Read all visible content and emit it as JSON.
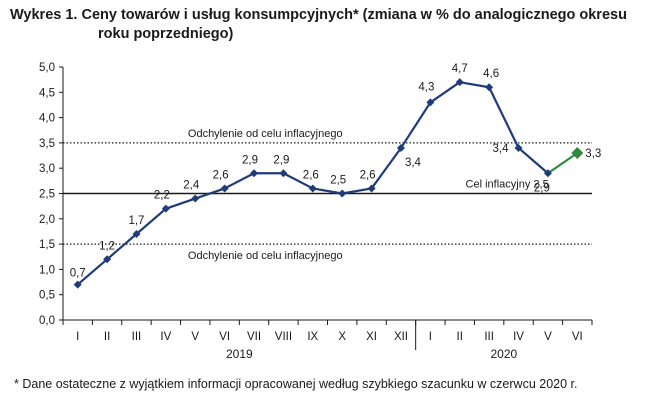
{
  "title_line1": "Wykres 1. Ceny towarów i usług konsumpcyjnych* (zmiana w % do analogicznego okresu",
  "title_line2": "roku poprzedniego)",
  "footnote": "* Dane ostateczne z wyjątkiem informacji opracowanej według szybkiego szacunku w czerwcu 2020 r.",
  "colors": {
    "line": "#1f3b7a",
    "highlight": "#2e8b3e",
    "text": "#1a1a1a"
  },
  "chart_data": {
    "type": "line",
    "categories": [
      "I",
      "II",
      "III",
      "IV",
      "V",
      "VI",
      "VII",
      "VIII",
      "IX",
      "X",
      "XI",
      "XII",
      "I",
      "II",
      "III",
      "IV",
      "V",
      "VI"
    ],
    "years": [
      {
        "label": "2019",
        "from": 0,
        "to": 11
      },
      {
        "label": "2020",
        "from": 12,
        "to": 17
      }
    ],
    "series": [
      {
        "values": [
          0.7,
          1.2,
          1.7,
          2.2,
          2.4,
          2.6,
          2.9,
          2.9,
          2.6,
          2.5,
          2.6,
          3.4,
          4.3,
          4.7,
          4.6,
          3.4,
          2.9,
          3.3
        ],
        "labels": [
          "0,7",
          "1,2",
          "1,7",
          "2,2",
          "2,4",
          "2,6",
          "2,9",
          "2,9",
          "2,6",
          "2,5",
          "2,6",
          "3,4",
          "4,3",
          "4,7",
          "4,6",
          "3,4",
          "2,9",
          "3,3"
        ],
        "highlight_last": true
      }
    ],
    "ylim": [
      0,
      5
    ],
    "yticks": [
      0,
      0.5,
      1,
      1.5,
      2,
      2.5,
      3,
      3.5,
      4,
      4.5,
      5
    ],
    "ytick_labels": [
      "0,0",
      "0,5",
      "1,0",
      "1,5",
      "2,0",
      "2,5",
      "3,0",
      "3,5",
      "4,0",
      "4,5",
      "5,0"
    ],
    "reference_lines": [
      {
        "value": 3.5,
        "style": "dotted",
        "label": "Odchylenie od celu inflacyjnego"
      },
      {
        "value": 2.5,
        "style": "solid",
        "label": "Cel inflacyjny 2,5"
      },
      {
        "value": 1.5,
        "style": "dotted",
        "label": "Odchylenie od celu inflacyjnego"
      }
    ],
    "grid": false,
    "xlabel": "",
    "ylabel": ""
  }
}
